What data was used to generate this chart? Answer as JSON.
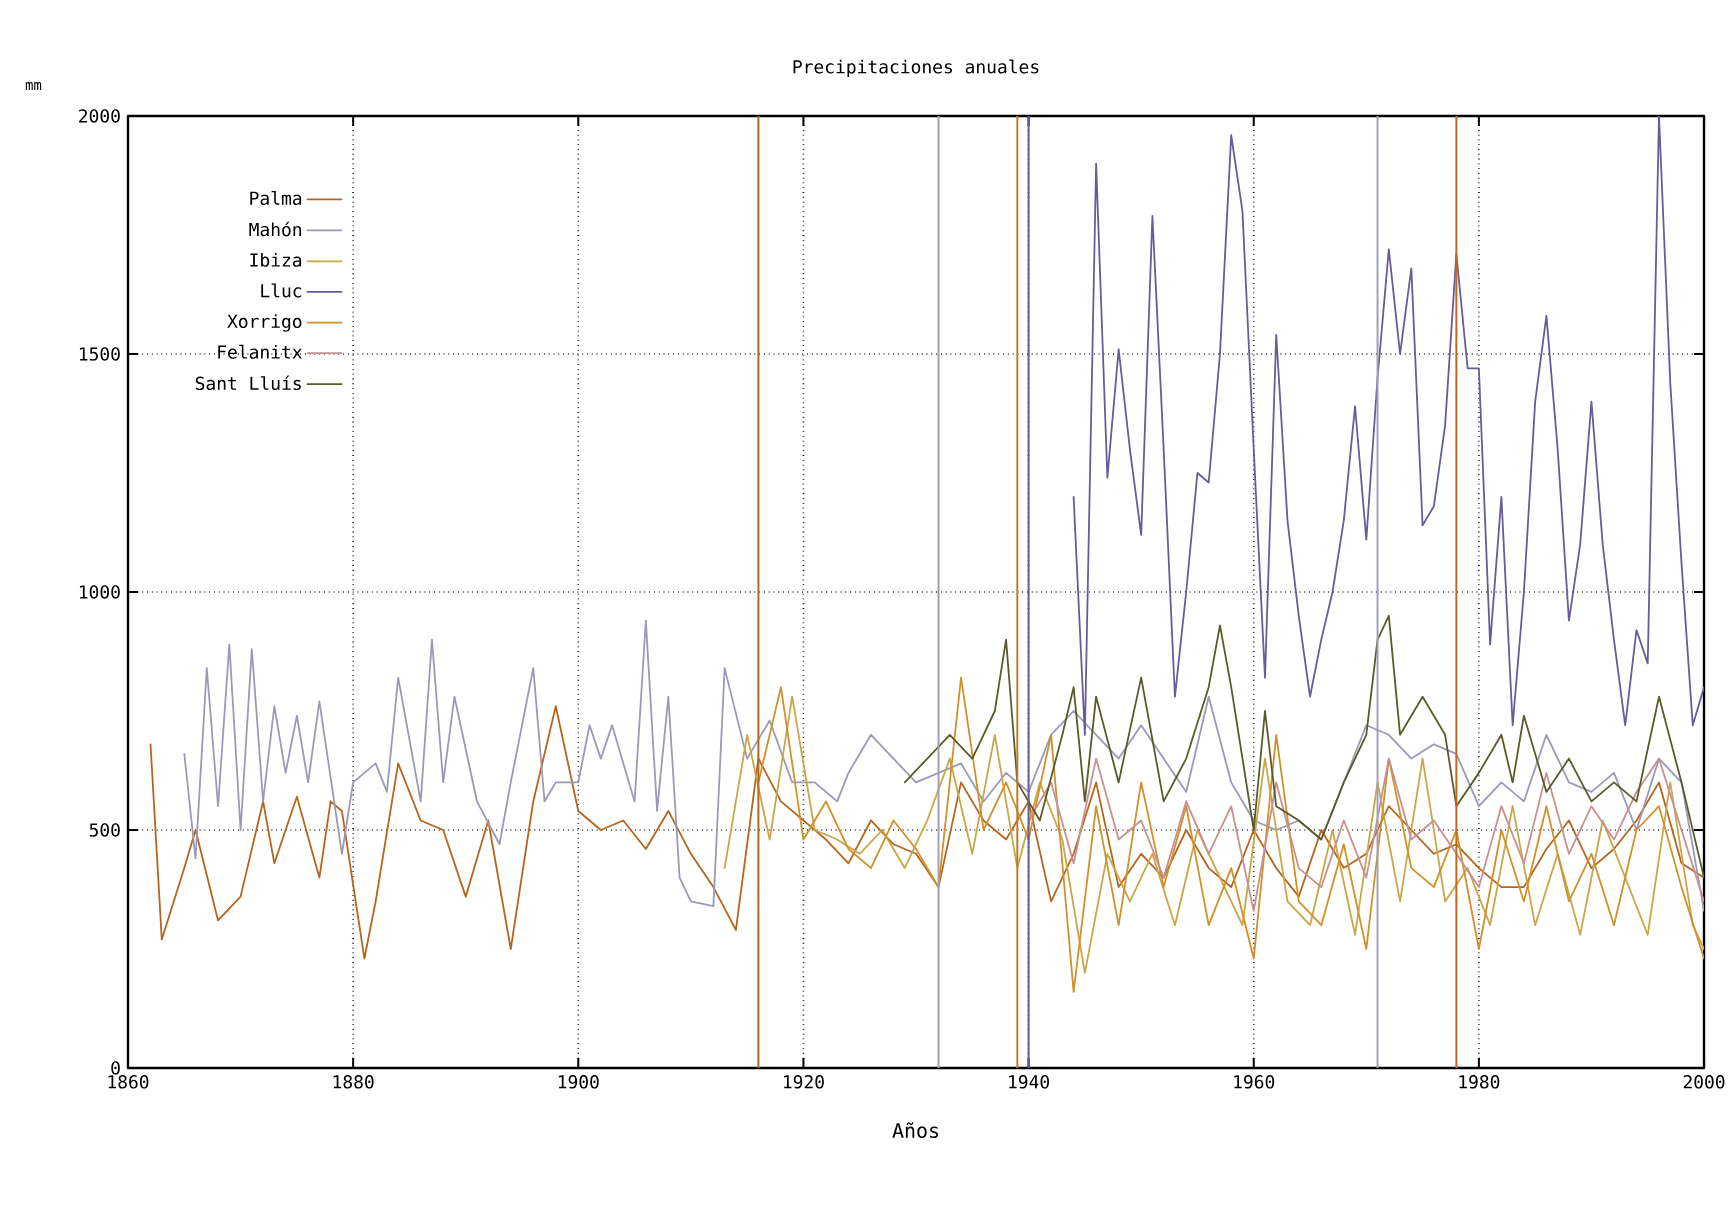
{
  "chart_data": {
    "type": "line",
    "title": "Precipitaciones anuales",
    "xlabel": "Años",
    "ylabel": "mm",
    "xlim": [
      1860,
      2000
    ],
    "ylim": [
      0,
      2000
    ],
    "xticks": [
      1860,
      1880,
      1900,
      1920,
      1940,
      1960,
      1980,
      2000
    ],
    "yticks": [
      0,
      500,
      1000,
      1500,
      2000
    ],
    "grid": true,
    "legend": "top left",
    "marker": "none",
    "ref_lines": [
      {
        "axis": "x",
        "value": 1916,
        "color": "#b5651d"
      },
      {
        "axis": "x",
        "value": 1932,
        "color": "#a0a0b8"
      },
      {
        "axis": "x",
        "value": 1939,
        "color": "#c07a2a"
      },
      {
        "axis": "x",
        "value": 1940,
        "color": "#6a5a9a"
      },
      {
        "axis": "x",
        "value": 1971,
        "color": "#a0a0b8"
      },
      {
        "axis": "x",
        "value": 1978,
        "color": "#c8651d"
      }
    ],
    "series": [
      {
        "name": "Palma",
        "color": "#b5651d",
        "x": [
          1862,
          1863,
          1865,
          1866,
          1868,
          1870,
          1872,
          1873,
          1875,
          1877,
          1878,
          1879,
          1881,
          1882,
          1884,
          1886,
          1888,
          1890,
          1892,
          1894,
          1896,
          1898,
          1900,
          1902,
          1904,
          1906,
          1908,
          1910,
          1912,
          1914,
          1916,
          1918,
          1920,
          1922,
          1924,
          1926,
          1928,
          1930,
          1932,
          1934,
          1936,
          1938,
          1940,
          1942,
          1944,
          1946,
          1948,
          1950,
          1952,
          1954,
          1956,
          1958,
          1960,
          1962,
          1964,
          1966,
          1968,
          1970,
          1972,
          1974,
          1976,
          1978,
          1980,
          1982,
          1984,
          1986,
          1988,
          1990,
          1992,
          1994,
          1996,
          1998,
          2000
        ],
        "values": [
          680,
          270,
          420,
          500,
          310,
          360,
          560,
          430,
          570,
          400,
          560,
          540,
          230,
          350,
          640,
          520,
          500,
          360,
          520,
          250,
          560,
          760,
          540,
          500,
          520,
          460,
          540,
          450,
          380,
          290,
          650,
          560,
          520,
          480,
          430,
          520,
          470,
          450,
          380,
          600,
          520,
          480,
          560,
          350,
          450,
          600,
          380,
          450,
          400,
          500,
          420,
          380,
          500,
          420,
          360,
          500,
          420,
          450,
          550,
          500,
          450,
          470,
          420,
          380,
          380,
          460,
          520,
          420,
          460,
          520,
          600,
          430,
          400
        ]
      },
      {
        "name": "Mahón",
        "color": "#9a9ab8",
        "x": [
          1865,
          1866,
          1867,
          1868,
          1869,
          1870,
          1871,
          1872,
          1873,
          1874,
          1875,
          1876,
          1877,
          1879,
          1880,
          1882,
          1883,
          1884,
          1886,
          1887,
          1888,
          1889,
          1891,
          1893,
          1894,
          1896,
          1897,
          1898,
          1900,
          1901,
          1902,
          1903,
          1905,
          1906,
          1907,
          1908,
          1909,
          1910,
          1912,
          1913,
          1915,
          1917,
          1919,
          1921,
          1923,
          1924,
          1926,
          1928,
          1930,
          1932,
          1934,
          1936,
          1938,
          1940,
          1942,
          1944,
          1946,
          1948,
          1950,
          1952,
          1954,
          1956,
          1958,
          1960,
          1962,
          1964,
          1966,
          1968,
          1970,
          1972,
          1974,
          1976,
          1978,
          1980,
          1982,
          1984,
          1986,
          1988,
          1990,
          1992,
          1994,
          1996,
          1998,
          2000
        ],
        "values": [
          660,
          440,
          840,
          550,
          890,
          500,
          880,
          560,
          760,
          620,
          740,
          600,
          770,
          450,
          600,
          640,
          580,
          820,
          560,
          900,
          600,
          780,
          560,
          470,
          600,
          840,
          560,
          600,
          600,
          720,
          650,
          720,
          560,
          940,
          540,
          780,
          400,
          350,
          340,
          840,
          650,
          730,
          600,
          600,
          560,
          620,
          700,
          650,
          600,
          620,
          640,
          560,
          620,
          580,
          700,
          750,
          700,
          650,
          720,
          650,
          580,
          780,
          600,
          520,
          500,
          520,
          480,
          600,
          720,
          700,
          650,
          680,
          660,
          550,
          600,
          560,
          700,
          600,
          580,
          620,
          500,
          650,
          600,
          330
        ]
      },
      {
        "name": "Ibiza",
        "color": "#c8a64a",
        "x": [
          1913,
          1915,
          1917,
          1919,
          1921,
          1923,
          1925,
          1927,
          1929,
          1931,
          1933,
          1935,
          1937,
          1939,
          1941,
          1943,
          1945,
          1947,
          1949,
          1951,
          1953,
          1955,
          1957,
          1959,
          1961,
          1963,
          1965,
          1967,
          1969,
          1971,
          1973,
          1975,
          1977,
          1979,
          1981,
          1983,
          1985,
          1987,
          1989,
          1991,
          1993,
          1995,
          1997,
          1999,
          2000
        ],
        "values": [
          420,
          700,
          480,
          780,
          500,
          480,
          450,
          500,
          420,
          520,
          650,
          450,
          700,
          420,
          600,
          480,
          200,
          450,
          350,
          450,
          300,
          500,
          400,
          300,
          650,
          350,
          300,
          500,
          280,
          600,
          350,
          650,
          350,
          420,
          300,
          550,
          300,
          450,
          280,
          520,
          400,
          280,
          600,
          300,
          250
        ]
      },
      {
        "name": "Lluc",
        "color": "#6a5a9a",
        "x": [
          1944,
          1945,
          1946,
          1947,
          1948,
          1949,
          1950,
          1951,
          1952,
          1953,
          1954,
          1955,
          1956,
          1957,
          1958,
          1959,
          1960,
          1961,
          1962,
          1963,
          1964,
          1965,
          1966,
          1967,
          1968,
          1969,
          1970,
          1971,
          1972,
          1973,
          1974,
          1975,
          1976,
          1977,
          1978,
          1979,
          1980,
          1981,
          1982,
          1983,
          1984,
          1985,
          1986,
          1987,
          1988,
          1989,
          1990,
          1991,
          1992,
          1993,
          1994,
          1995,
          1996,
          1997,
          1998,
          1999,
          2000
        ],
        "values": [
          1200,
          700,
          1900,
          1240,
          1510,
          1300,
          1120,
          1790,
          1300,
          780,
          1000,
          1250,
          1230,
          1500,
          1960,
          1800,
          1300,
          820,
          1540,
          1150,
          950,
          780,
          900,
          1000,
          1150,
          1390,
          1110,
          1450,
          1720,
          1500,
          1680,
          1140,
          1180,
          1350,
          1710,
          1470,
          1470,
          890,
          1200,
          720,
          1000,
          1400,
          1580,
          1300,
          940,
          1100,
          1400,
          1100,
          900,
          720,
          920,
          850,
          2000,
          1440,
          1060,
          720,
          800
        ]
      },
      {
        "name": "Xorrigo",
        "color": "#d0902a",
        "x": [
          1916,
          1918,
          1920,
          1922,
          1924,
          1926,
          1928,
          1930,
          1932,
          1934,
          1936,
          1938,
          1940,
          1942,
          1944,
          1946,
          1948,
          1950,
          1952,
          1954,
          1956,
          1958,
          1960,
          1962,
          1964,
          1966,
          1968,
          1970,
          1972,
          1974,
          1976,
          1978,
          1980,
          1982,
          1984,
          1986,
          1988,
          1990,
          1992,
          1994,
          1996,
          1998,
          2000
        ],
        "values": [
          600,
          800,
          480,
          560,
          460,
          420,
          520,
          460,
          380,
          820,
          500,
          600,
          480,
          700,
          160,
          550,
          300,
          600,
          380,
          550,
          300,
          420,
          230,
          700,
          350,
          300,
          470,
          250,
          650,
          420,
          380,
          500,
          250,
          500,
          350,
          550,
          350,
          450,
          300,
          500,
          550,
          380,
          230
        ]
      },
      {
        "name": "Felanitx",
        "color": "#c89090",
        "x": [
          1940,
          1942,
          1944,
          1946,
          1948,
          1950,
          1952,
          1954,
          1956,
          1958,
          1960,
          1962,
          1964,
          1966,
          1968,
          1970,
          1972,
          1974,
          1976,
          1978,
          1980,
          1982,
          1984,
          1986,
          1988,
          1990,
          1992,
          1994,
          1996,
          1998,
          2000
        ],
        "values": [
          520,
          600,
          430,
          650,
          480,
          520,
          400,
          560,
          450,
          550,
          330,
          600,
          420,
          380,
          520,
          400,
          650,
          480,
          520,
          450,
          380,
          550,
          430,
          620,
          450,
          550,
          480,
          580,
          650,
          500,
          350
        ]
      },
      {
        "name": "Sant Lluís",
        "color": "#5a5a2a",
        "x": [
          1929,
          1931,
          1933,
          1935,
          1937,
          1938,
          1939,
          1941,
          1943,
          1944,
          1945,
          1946,
          1948,
          1950,
          1952,
          1954,
          1956,
          1957,
          1958,
          1960,
          1961,
          1962,
          1964,
          1966,
          1968,
          1970,
          1971,
          1972,
          1973,
          1975,
          1977,
          1978,
          1980,
          1982,
          1983,
          1984,
          1986,
          1988,
          1990,
          1992,
          1994,
          1996,
          1998,
          2000
        ],
        "values": [
          600,
          650,
          700,
          650,
          750,
          900,
          600,
          520,
          700,
          800,
          560,
          780,
          600,
          820,
          560,
          650,
          800,
          930,
          800,
          500,
          750,
          550,
          520,
          480,
          600,
          700,
          900,
          950,
          700,
          780,
          700,
          550,
          620,
          700,
          600,
          740,
          580,
          650,
          560,
          600,
          560,
          780,
          600,
          400
        ]
      }
    ]
  }
}
